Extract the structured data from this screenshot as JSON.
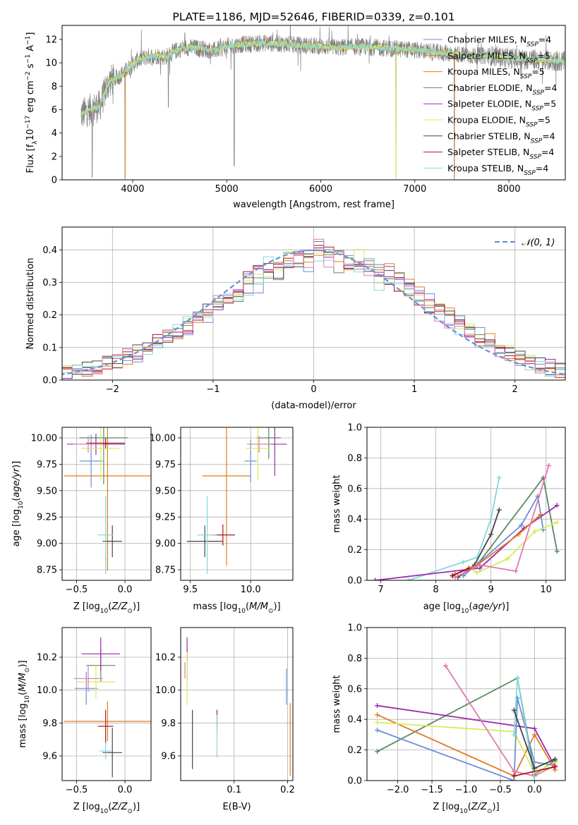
{
  "colors": {
    "blue": "#6a8fd8",
    "orange": "#e07b20",
    "green": "#5a8a60",
    "purple": "#9b2ab0",
    "lime": "#d6ec5a",
    "dark": "#454545",
    "red": "#b0181a",
    "cyan": "#86d7dd",
    "pink": "#e078b0",
    "grey": "#808080"
  },
  "chart_data": [
    {
      "id": "spectrum",
      "type": "line",
      "title": "PLATE=1186, MJD=52646, FIBERID=0339, z=0.101",
      "xlabel": "wavelength [Angstrom, rest frame]",
      "ylabel": "Flux [fλ10⁻¹⁷ erg cm⁻² s⁻¹ A⁻¹]",
      "xlim": [
        3250,
        8600
      ],
      "ylim": [
        0,
        13.2
      ],
      "xticks": [
        4000,
        5000,
        6000,
        7000,
        8000
      ],
      "yticks": [
        0,
        2,
        4,
        6,
        8,
        10,
        12
      ],
      "grid": false,
      "legend_position": "right",
      "series": [
        {
          "name": "Chabrier MILES, N_SSP=4",
          "color": "blue"
        },
        {
          "name": "Salpeter MILES, N_SSP=5",
          "color": "orange"
        },
        {
          "name": "Kroupa MILES, N_SSP=5",
          "color": "orange"
        },
        {
          "name": "Chabrier ELODIE, N_SSP=4",
          "color": "green"
        },
        {
          "name": "Salpeter ELODIE, N_SSP=5",
          "color": "purple"
        },
        {
          "name": "Kroupa ELODIE, N_SSP=5",
          "color": "lime"
        },
        {
          "name": "Chabrier STELIB, N_SSP=4",
          "color": "dark"
        },
        {
          "name": "Salpeter STELIB, N_SSP=4",
          "color": "red"
        },
        {
          "name": "Kroupa STELIB, N_SSP=4",
          "color": "cyan"
        }
      ],
      "continuum": {
        "x": [
          3450,
          3550,
          3650,
          3750,
          3850,
          3950,
          4050,
          4150,
          4250,
          4350,
          4450,
          4550,
          4650,
          4750,
          4850,
          5000,
          5200,
          5400,
          5600,
          5800,
          6000,
          6200,
          6400,
          6600,
          6800,
          7000,
          7200,
          7400,
          7600,
          7800,
          8000,
          8200,
          8400,
          8600
        ],
        "y": [
          5.6,
          6.0,
          6.3,
          8.4,
          8.8,
          9.5,
          10.2,
          10.5,
          10.6,
          10.5,
          11.0,
          11.3,
          11.3,
          11.2,
          11.0,
          11.4,
          11.6,
          11.7,
          11.6,
          11.5,
          11.4,
          11.3,
          11.4,
          11.3,
          11.2,
          11.1,
          10.9,
          10.8,
          10.6,
          10.6,
          10.4,
          10.3,
          10.2,
          10.1
        ]
      },
      "spikes": [
        {
          "x": 3570,
          "y": 0.2
        },
        {
          "x": 3920,
          "y": 0.2
        },
        {
          "x": 4380,
          "y": 6.2
        },
        {
          "x": 5080,
          "y": 1.2
        },
        {
          "x": 6800,
          "y": 0.2
        },
        {
          "x": 7420,
          "y": 0.2
        }
      ]
    },
    {
      "id": "residuals",
      "type": "line",
      "xlabel": "(data-model)/error",
      "ylabel": "Normed distribution",
      "xlim": [
        -2.5,
        2.5
      ],
      "ylim": [
        0,
        0.47
      ],
      "xticks": [
        -2,
        -1,
        0,
        1,
        2
      ],
      "yticks": [
        0.0,
        0.1,
        0.2,
        0.3,
        0.4
      ],
      "grid": true,
      "legend": "𝒩(0, 1)",
      "legend_position": "top-right",
      "reference": {
        "type": "gaussian",
        "mean": 0,
        "sigma": 1,
        "style": "dashed",
        "color": "blue"
      },
      "bin_width": 0.1
    },
    {
      "id": "age-vs-Z",
      "type": "scatter",
      "xlabel": "Z [log₁₀(Z/Z⊙)]",
      "ylabel": "age  [log₁₀(age/yr)]",
      "xlim": [
        -0.65,
        0.27
      ],
      "ylim": [
        8.65,
        10.1
      ],
      "xticks": [
        -0.5,
        0.0
      ],
      "yticks": [
        8.75,
        9.0,
        9.25,
        9.5,
        9.75,
        10.0
      ],
      "grid": true,
      "points": [
        {
          "color": "blue",
          "x": -0.35,
          "y": 9.78,
          "xerr": 0.12,
          "yerr": 0.25
        },
        {
          "color": "orange",
          "x": -0.18,
          "y": 9.64,
          "xerr": 0.45,
          "yerr": 0.9
        },
        {
          "color": "green",
          "x": -0.22,
          "y": 10.0,
          "xerr": 0.25,
          "yerr": 0.44
        },
        {
          "color": "purple",
          "x": -0.3,
          "y": 9.94,
          "xerr": 0.3,
          "yerr": 0.1
        },
        {
          "color": "lime",
          "x": -0.25,
          "y": 9.9,
          "xerr": 0.2,
          "yerr": 0.3
        },
        {
          "color": "dark",
          "x": -0.13,
          "y": 9.02,
          "xerr": 0.1,
          "yerr": 0.15
        },
        {
          "color": "red",
          "x": -0.2,
          "y": 9.95,
          "xerr": 0.2,
          "yerr": 0.05
        },
        {
          "color": "cyan",
          "x": -0.2,
          "y": 9.08,
          "xerr": 0.08,
          "yerr": 0.37
        },
        {
          "color": "pink",
          "x": -0.38,
          "y": 9.94,
          "xerr": 0.15,
          "yerr": 0.08
        }
      ]
    },
    {
      "id": "age-vs-mass",
      "type": "scatter",
      "xlabel": "mass [log₁₀(M/M⊙)]",
      "xlim": [
        9.42,
        10.35
      ],
      "ylim": [
        8.65,
        10.1
      ],
      "xticks": [
        9.5,
        10.0
      ],
      "yticks": [
        8.75,
        9.0,
        9.25,
        9.5,
        9.75,
        10.0
      ],
      "grid": true,
      "points": [
        {
          "color": "blue",
          "x": 10.0,
          "y": 9.78,
          "xerr": 0.05,
          "yerr": 0.2
        },
        {
          "color": "orange",
          "x": 9.8,
          "y": 9.64,
          "xerr": 0.2,
          "yerr": 0.85
        },
        {
          "color": "green",
          "x": 10.15,
          "y": 10.0,
          "xerr": 0.1,
          "yerr": 0.2
        },
        {
          "color": "purple",
          "x": 10.2,
          "y": 9.94,
          "xerr": 0.1,
          "yerr": 0.3
        },
        {
          "color": "lime",
          "x": 10.06,
          "y": 9.9,
          "xerr": 0.1,
          "yerr": 0.3
        },
        {
          "color": "dark",
          "x": 9.62,
          "y": 9.02,
          "xerr": 0.15,
          "yerr": 0.15
        },
        {
          "color": "red",
          "x": 9.77,
          "y": 9.08,
          "xerr": 0.1,
          "yerr": 0.1
        },
        {
          "color": "cyan",
          "x": 9.64,
          "y": 9.08,
          "xerr": 0.08,
          "yerr": 0.37
        },
        {
          "color": "pink",
          "x": 10.07,
          "y": 9.94,
          "xerr": 0.1,
          "yerr": 0.08
        }
      ]
    },
    {
      "id": "weight-vs-age",
      "type": "line",
      "xlabel": "age  [log₁₀(age/yr)]",
      "ylabel": "mass weight",
      "xlim": [
        6.75,
        10.35
      ],
      "ylim": [
        0,
        1.0
      ],
      "xticks": [
        7,
        8,
        9,
        10
      ],
      "yticks": [
        0.0,
        0.2,
        0.4,
        0.6,
        0.8,
        1.0
      ],
      "grid": true,
      "series": [
        {
          "color": "cyan",
          "x": [
            7.5,
            8.5,
            8.75,
            9.0,
            9.15
          ],
          "y": [
            0.0,
            0.12,
            0.15,
            0.4,
            0.67
          ]
        },
        {
          "color": "dark",
          "x": [
            8.4,
            8.7,
            9.0,
            9.15
          ],
          "y": [
            0.02,
            0.1,
            0.3,
            0.46
          ]
        },
        {
          "color": "green",
          "x": [
            8.35,
            8.75,
            9.95,
            10.2
          ],
          "y": [
            0.04,
            0.1,
            0.67,
            0.19
          ]
        },
        {
          "color": "blue",
          "x": [
            8.5,
            8.8,
            9.55,
            9.85,
            9.95
          ],
          "y": [
            0.03,
            0.12,
            0.36,
            0.55,
            0.33
          ]
        },
        {
          "color": "purple",
          "x": [
            6.9,
            8.8,
            9.6,
            10.2
          ],
          "y": [
            0.0,
            0.08,
            0.34,
            0.49
          ]
        },
        {
          "color": "lime",
          "x": [
            8.6,
            8.75,
            9.3,
            9.8,
            10.2
          ],
          "y": [
            0.08,
            0.05,
            0.14,
            0.32,
            0.38
          ]
        },
        {
          "color": "orange",
          "x": [
            8.3,
            8.75,
            9.5,
            9.9
          ],
          "y": [
            0.03,
            0.1,
            0.3,
            0.43
          ]
        },
        {
          "color": "pink",
          "x": [
            8.35,
            8.8,
            9.45,
            10.05
          ],
          "y": [
            0.02,
            0.1,
            0.06,
            0.75
          ]
        },
        {
          "color": "red",
          "x": [
            8.3,
            8.6
          ],
          "y": [
            0.03,
            0.08
          ]
        }
      ]
    },
    {
      "id": "mass-vs-Z",
      "type": "scatter",
      "xlabel": "Z [log₁₀(Z/Z⊙)]",
      "ylabel": "mass [log₁₀(M/M⊙)]",
      "xlim": [
        -0.65,
        0.27
      ],
      "ylim": [
        9.45,
        10.38
      ],
      "xticks": [
        -0.5,
        0.0
      ],
      "yticks": [
        9.6,
        9.8,
        10.0,
        10.2
      ],
      "grid": true,
      "points": [
        {
          "color": "blue",
          "x": -0.4,
          "y": 10.01,
          "xerr": 0.12,
          "yerr": 0.1
        },
        {
          "color": "orange",
          "x": -0.18,
          "y": 9.81,
          "xerr": 0.45,
          "yerr": 0.12
        },
        {
          "color": "green",
          "x": -0.25,
          "y": 10.15,
          "xerr": 0.15,
          "yerr": 0.1
        },
        {
          "color": "purple",
          "x": -0.25,
          "y": 10.22,
          "xerr": 0.2,
          "yerr": 0.1
        },
        {
          "color": "lime",
          "x": -0.3,
          "y": 10.05,
          "xerr": 0.2,
          "yerr": 0.1
        },
        {
          "color": "dark",
          "x": -0.13,
          "y": 9.62,
          "xerr": 0.1,
          "yerr": 0.15
        },
        {
          "color": "red",
          "x": -0.2,
          "y": 9.78,
          "xerr": 0.08,
          "yerr": 0.1
        },
        {
          "color": "cyan",
          "x": -0.2,
          "y": 9.63,
          "xerr": 0.06,
          "yerr": 0.05
        },
        {
          "color": "pink",
          "x": -0.38,
          "y": 10.07,
          "xerr": 0.15,
          "yerr": 0.08
        }
      ]
    },
    {
      "id": "mass-vs-ebv",
      "type": "scatter",
      "xlabel": "E(B-V)",
      "xlim": [
        0.0,
        0.21
      ],
      "ylim": [
        9.45,
        10.38
      ],
      "xticks": [
        0.1,
        0.2
      ],
      "yticks": [
        9.6,
        9.8,
        10.0,
        10.2
      ],
      "grid": true,
      "points": [
        {
          "color": "blue",
          "x": 0.198,
          "y": 10.02,
          "yerr": 0.11
        },
        {
          "color": "orange",
          "x": 0.205,
          "y": 9.7,
          "yerr": 0.22
        },
        {
          "color": "green",
          "x": 0.012,
          "y": 10.15,
          "yerr": 0.1
        },
        {
          "color": "purple",
          "x": 0.012,
          "y": 10.25,
          "yerr": 0.07
        },
        {
          "color": "lime",
          "x": 0.012,
          "y": 10.07,
          "yerr": 0.16
        },
        {
          "color": "dark",
          "x": 0.022,
          "y": 9.7,
          "yerr": 0.18
        },
        {
          "color": "red",
          "x": 0.068,
          "y": 9.82,
          "yerr": 0.06
        },
        {
          "color": "cyan",
          "x": 0.068,
          "y": 9.72,
          "yerr": 0.13
        },
        {
          "color": "pink",
          "x": 0.008,
          "y": 10.12,
          "yerr": 0.05
        }
      ]
    },
    {
      "id": "weight-vs-Z",
      "type": "line",
      "xlabel": "Z [log₁₀(Z/Z⊙)]",
      "ylabel": "mass weight",
      "xlim": [
        -2.45,
        0.45
      ],
      "ylim": [
        0,
        1.0
      ],
      "xticks": [
        -2.0,
        -1.5,
        -1.0,
        -0.5,
        0.0
      ],
      "yticks": [
        0.0,
        0.2,
        0.4,
        0.6,
        0.8,
        1.0
      ],
      "grid": true,
      "series": [
        {
          "color": "green",
          "x": [
            -2.3,
            -0.25,
            0.0,
            0.3
          ],
          "y": [
            0.19,
            0.67,
            0.04,
            0.13
          ]
        },
        {
          "color": "purple",
          "x": [
            -2.3,
            0.0,
            0.3
          ],
          "y": [
            0.49,
            0.34,
            0.09
          ]
        },
        {
          "color": "orange",
          "x": [
            -2.3,
            -0.3,
            0.0,
            0.3
          ],
          "y": [
            0.43,
            0.03,
            0.3,
            0.07
          ]
        },
        {
          "color": "lime",
          "x": [
            -2.3,
            -0.3,
            0.0,
            0.3
          ],
          "y": [
            0.38,
            0.32,
            0.05,
            0.12
          ]
        },
        {
          "color": "blue",
          "x": [
            -2.3,
            -0.3,
            -0.25,
            0.0,
            0.3
          ],
          "y": [
            0.33,
            0.0,
            0.54,
            0.12,
            0.1
          ]
        },
        {
          "color": "pink",
          "x": [
            -1.3,
            -0.3,
            0.0,
            0.3
          ],
          "y": [
            0.75,
            0.06,
            0.03,
            0.1
          ]
        },
        {
          "color": "cyan",
          "x": [
            -0.3,
            -0.25,
            0.0
          ],
          "y": [
            0.3,
            0.67,
            0.0
          ]
        },
        {
          "color": "dark",
          "x": [
            -0.3,
            0.0,
            0.3
          ],
          "y": [
            0.46,
            0.08,
            0.14
          ]
        },
        {
          "color": "red",
          "x": [
            -0.3,
            0.3
          ],
          "y": [
            0.03,
            0.09
          ]
        }
      ]
    }
  ]
}
